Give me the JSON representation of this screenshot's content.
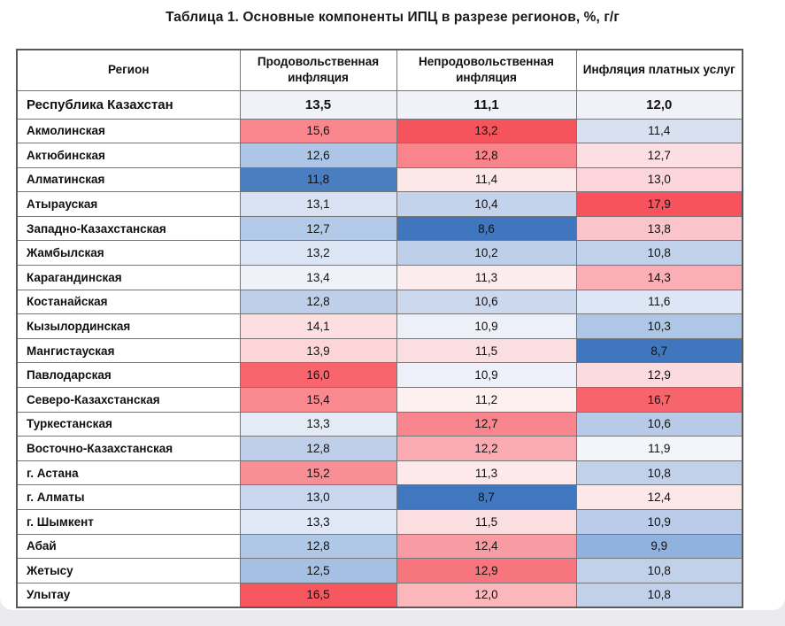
{
  "title": "Таблица 1. Основные компоненты ИПЦ в разрезе регионов, %, г/г",
  "chart_data": {
    "type": "table",
    "subtype": "heatmap-table",
    "title": "Таблица 1. Основные компоненты ИПЦ в разрезе регионов, %, г/г",
    "columns": [
      "Регион",
      "Продовольственная инфляция",
      "Непродовольственная инфляция",
      "Инфляция платных услуг"
    ],
    "value_format": "percent, year-over-year, decimal comma",
    "heatmap_palette": {
      "low": "#3F76BE",
      "mid": "#FFFFFF",
      "high": "#F6525C"
    },
    "summary_row": {
      "region": "Республика Казахстан",
      "values": [
        "13,5",
        "11,1",
        "12,0"
      ],
      "values_numeric": [
        13.5,
        11.1,
        12.0
      ],
      "cell_bg": "#F1F2F9"
    },
    "rows": [
      {
        "region": "Акмолинская",
        "values": [
          "15,6",
          "13,2",
          "11,4"
        ],
        "values_numeric": [
          15.6,
          13.2,
          11.4
        ],
        "colors": [
          "#FA868E",
          "#F6545D",
          "#D9E1F1"
        ]
      },
      {
        "region": "Актюбинская",
        "values": [
          "12,6",
          "12,8",
          "12,7"
        ],
        "values_numeric": [
          12.6,
          12.8,
          12.7
        ],
        "colors": [
          "#AEC6E6",
          "#F9848C",
          "#FBDFE2"
        ]
      },
      {
        "region": "Алматинская",
        "values": [
          "11,8",
          "11,4",
          "13,0"
        ],
        "values_numeric": [
          11.8,
          11.4,
          13.0
        ],
        "colors": [
          "#4A7EC1",
          "#FCE7E9",
          "#FBD5D9"
        ]
      },
      {
        "region": "Атырауская",
        "values": [
          "13,1",
          "10,4",
          "17,9"
        ],
        "values_numeric": [
          13.1,
          10.4,
          17.9
        ],
        "colors": [
          "#D8E2F2",
          "#C4D3EC",
          "#F7525D"
        ]
      },
      {
        "region": "Западно-Казахстанская",
        "values": [
          "12,7",
          "8,6",
          "13,8"
        ],
        "values_numeric": [
          12.7,
          8.6,
          13.8
        ],
        "colors": [
          "#B2C9E7",
          "#3F76BE",
          "#FAC5CA"
        ]
      },
      {
        "region": "Жамбылская",
        "values": [
          "13,2",
          "10,2",
          "10,8"
        ],
        "values_numeric": [
          13.2,
          10.2,
          10.8
        ],
        "colors": [
          "#DCE5F3",
          "#BDCFE9",
          "#C2D1EA"
        ]
      },
      {
        "region": "Карагандинская",
        "values": [
          "13,4",
          "11,3",
          "14,3"
        ],
        "values_numeric": [
          13.4,
          11.3,
          14.3
        ],
        "colors": [
          "#EFF2F9",
          "#FDECED",
          "#F9AFB5"
        ]
      },
      {
        "region": "Костанайская",
        "values": [
          "12,8",
          "10,6",
          "11,6"
        ],
        "values_numeric": [
          12.8,
          10.6,
          11.6
        ],
        "colors": [
          "#BFCFE9",
          "#CBD8EE",
          "#DDE6F4"
        ]
      },
      {
        "region": "Кызылординская",
        "values": [
          "14,1",
          "10,9",
          "10,3"
        ],
        "values_numeric": [
          14.1,
          10.9,
          10.3
        ],
        "colors": [
          "#FDDFE2",
          "#EDF0F8",
          "#AFC7E6"
        ]
      },
      {
        "region": "Мангистауская",
        "values": [
          "13,9",
          "11,5",
          "8,7"
        ],
        "values_numeric": [
          13.9,
          11.5,
          8.7
        ],
        "colors": [
          "#FCD5D9",
          "#FBDEE0",
          "#3F76BE"
        ]
      },
      {
        "region": "Павлодарская",
        "values": [
          "16,0",
          "10,9",
          "12,9"
        ],
        "values_numeric": [
          16.0,
          10.9,
          12.9
        ],
        "colors": [
          "#F8656D",
          "#EDF0F8",
          "#FBDBDE"
        ]
      },
      {
        "region": "Северо-Казахстанская",
        "values": [
          "15,4",
          "11,2",
          "16,7"
        ],
        "values_numeric": [
          15.4,
          11.2,
          16.7
        ],
        "colors": [
          "#F9888F",
          "#FDF0F1",
          "#F7646C"
        ]
      },
      {
        "region": "Туркестанская",
        "values": [
          "13,3",
          "12,7",
          "10,6"
        ],
        "values_numeric": [
          13.3,
          12.7,
          10.6
        ],
        "colors": [
          "#E5EBF6",
          "#F9868E",
          "#B7CBE8"
        ]
      },
      {
        "region": "Восточно-Казахстанская",
        "values": [
          "12,8",
          "12,2",
          "11,9"
        ],
        "values_numeric": [
          12.8,
          12.2,
          11.9
        ],
        "colors": [
          "#BFCFE9",
          "#FAABB1",
          "#F3F5FB"
        ]
      },
      {
        "region": "г. Астана",
        "values": [
          "15,2",
          "11,3",
          "10,8"
        ],
        "values_numeric": [
          15.2,
          11.3,
          10.8
        ],
        "colors": [
          "#F98F96",
          "#FDE9EB",
          "#C2D1EA"
        ]
      },
      {
        "region": "г. Алматы",
        "values": [
          "13,0",
          "8,7",
          "12,4"
        ],
        "values_numeric": [
          13.0,
          8.7,
          12.4
        ],
        "colors": [
          "#C9D6ED",
          "#4077BF",
          "#FCE7E9"
        ]
      },
      {
        "region": "г. Шымкент",
        "values": [
          "13,3",
          "11,5",
          "10,9"
        ],
        "values_numeric": [
          13.3,
          11.5,
          10.9
        ],
        "colors": [
          "#E0E8F5",
          "#FBDEE0",
          "#BACCE9"
        ]
      },
      {
        "region": "Абай",
        "values": [
          "12,8",
          "12,4",
          "9,9"
        ],
        "values_numeric": [
          12.8,
          12.4,
          9.9
        ],
        "colors": [
          "#AFC8E7",
          "#F99BA2",
          "#8FB2DE"
        ]
      },
      {
        "region": "Жетысу",
        "values": [
          "12,5",
          "12,9",
          "10,8"
        ],
        "values_numeric": [
          12.5,
          12.9,
          10.8
        ],
        "colors": [
          "#A6C0E3",
          "#F7757D",
          "#C2D1EA"
        ]
      },
      {
        "region": "Улытау",
        "values": [
          "16,5",
          "12,0",
          "10,8"
        ],
        "values_numeric": [
          16.5,
          12.0,
          10.8
        ],
        "colors": [
          "#F7575F",
          "#FBB7BC",
          "#C2D1EA"
        ]
      }
    ]
  }
}
